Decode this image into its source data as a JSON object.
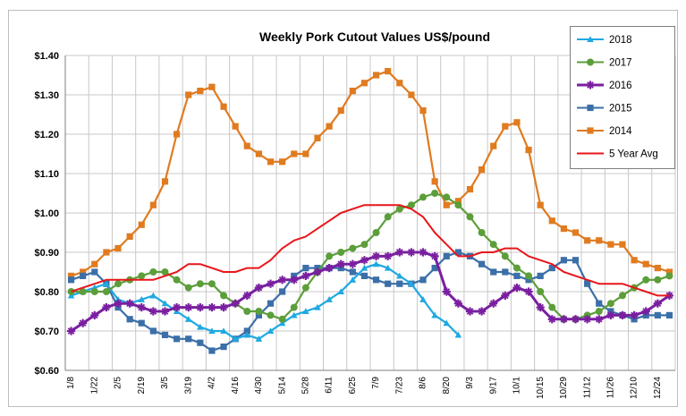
{
  "chart_data": {
    "type": "line",
    "title": "Weekly Pork Cutout Values US$/pound",
    "xlabel": "",
    "ylabel": "",
    "ylim": [
      0.6,
      1.4
    ],
    "y_ticks": [
      0.6,
      0.7,
      0.8,
      0.9,
      1.0,
      1.1,
      1.2,
      1.3,
      1.4
    ],
    "y_tick_labels": [
      "$0.60",
      "$0.70",
      "$0.80",
      "$0.90",
      "$1.00",
      "$1.10",
      "$1.20",
      "$1.30",
      "$1.40"
    ],
    "x_tick_labels": [
      "1/8",
      "1/22",
      "2/5",
      "2/19",
      "3/5",
      "3/19",
      "4/2",
      "4/16",
      "4/30",
      "5/14",
      "5/28",
      "6/11",
      "6/25",
      "7/9",
      "7/23",
      "8/6",
      "8/20",
      "9/3",
      "9/17",
      "10/1",
      "10/15",
      "10/29",
      "11/12",
      "11/26",
      "12/10",
      "12/24"
    ],
    "x_count": 52,
    "grid": true,
    "legend_position": "top-right",
    "series": [
      {
        "name": "2018",
        "color": "#1fa9e1",
        "marker": "triangle",
        "values": [
          0.79,
          0.8,
          0.81,
          0.82,
          0.78,
          0.77,
          0.78,
          0.79,
          0.77,
          0.75,
          0.73,
          0.71,
          0.7,
          0.7,
          0.68,
          0.69,
          0.68,
          0.7,
          0.72,
          0.74,
          0.75,
          0.76,
          0.78,
          0.8,
          0.83,
          0.86,
          0.87,
          0.86,
          0.84,
          0.82,
          0.78,
          0.74,
          0.72,
          0.69
        ]
      },
      {
        "name": "2017",
        "color": "#5c9e3a",
        "marker": "circle",
        "values": [
          0.8,
          0.8,
          0.8,
          0.8,
          0.82,
          0.83,
          0.84,
          0.85,
          0.85,
          0.83,
          0.81,
          0.82,
          0.82,
          0.79,
          0.77,
          0.75,
          0.75,
          0.74,
          0.73,
          0.76,
          0.81,
          0.85,
          0.89,
          0.9,
          0.91,
          0.92,
          0.95,
          0.99,
          1.01,
          1.02,
          1.04,
          1.05,
          1.04,
          1.02,
          0.99,
          0.95,
          0.92,
          0.89,
          0.86,
          0.84,
          0.8,
          0.76,
          0.73,
          0.73,
          0.74,
          0.75,
          0.77,
          0.79,
          0.81,
          0.83,
          0.83,
          0.84
        ]
      },
      {
        "name": "2016",
        "color": "#7a1fa0",
        "marker": "star",
        "values": [
          0.7,
          0.72,
          0.74,
          0.76,
          0.77,
          0.77,
          0.76,
          0.75,
          0.75,
          0.76,
          0.76,
          0.76,
          0.76,
          0.76,
          0.77,
          0.79,
          0.81,
          0.82,
          0.83,
          0.83,
          0.84,
          0.85,
          0.86,
          0.87,
          0.87,
          0.88,
          0.89,
          0.89,
          0.9,
          0.9,
          0.9,
          0.89,
          0.8,
          0.77,
          0.75,
          0.75,
          0.77,
          0.79,
          0.81,
          0.8,
          0.76,
          0.73,
          0.73,
          0.73,
          0.73,
          0.73,
          0.74,
          0.74,
          0.74,
          0.75,
          0.77,
          0.79
        ]
      },
      {
        "name": "2015",
        "color": "#3b6fa8",
        "marker": "square",
        "values": [
          0.83,
          0.84,
          0.85,
          0.82,
          0.76,
          0.73,
          0.72,
          0.7,
          0.69,
          0.68,
          0.68,
          0.67,
          0.65,
          0.66,
          0.68,
          0.7,
          0.74,
          0.77,
          0.8,
          0.84,
          0.86,
          0.86,
          0.86,
          0.86,
          0.85,
          0.84,
          0.83,
          0.82,
          0.82,
          0.82,
          0.83,
          0.86,
          0.89,
          0.9,
          0.89,
          0.87,
          0.85,
          0.85,
          0.84,
          0.83,
          0.84,
          0.86,
          0.88,
          0.88,
          0.82,
          0.77,
          0.75,
          0.74,
          0.73,
          0.74,
          0.74,
          0.74
        ]
      },
      {
        "name": "2014",
        "color": "#e07b20",
        "marker": "square",
        "values": [
          0.84,
          0.85,
          0.87,
          0.9,
          0.91,
          0.94,
          0.97,
          1.02,
          1.08,
          1.2,
          1.3,
          1.31,
          1.32,
          1.27,
          1.22,
          1.17,
          1.15,
          1.13,
          1.13,
          1.15,
          1.15,
          1.19,
          1.22,
          1.26,
          1.31,
          1.33,
          1.35,
          1.36,
          1.33,
          1.3,
          1.26,
          1.08,
          1.02,
          1.03,
          1.06,
          1.11,
          1.17,
          1.22,
          1.23,
          1.16,
          1.02,
          0.98,
          0.96,
          0.95,
          0.93,
          0.93,
          0.92,
          0.92,
          0.88,
          0.87,
          0.86,
          0.85
        ]
      },
      {
        "name": "5 Year Avg",
        "color": "#e8161b",
        "marker": "none",
        "values": [
          0.8,
          0.81,
          0.82,
          0.83,
          0.83,
          0.83,
          0.83,
          0.83,
          0.84,
          0.85,
          0.87,
          0.87,
          0.86,
          0.85,
          0.85,
          0.86,
          0.86,
          0.88,
          0.91,
          0.93,
          0.94,
          0.96,
          0.98,
          1.0,
          1.01,
          1.02,
          1.02,
          1.02,
          1.02,
          1.01,
          0.99,
          0.95,
          0.92,
          0.89,
          0.89,
          0.9,
          0.9,
          0.91,
          0.91,
          0.89,
          0.88,
          0.87,
          0.85,
          0.84,
          0.83,
          0.82,
          0.82,
          0.82,
          0.81,
          0.8,
          0.79,
          0.79
        ]
      }
    ]
  }
}
